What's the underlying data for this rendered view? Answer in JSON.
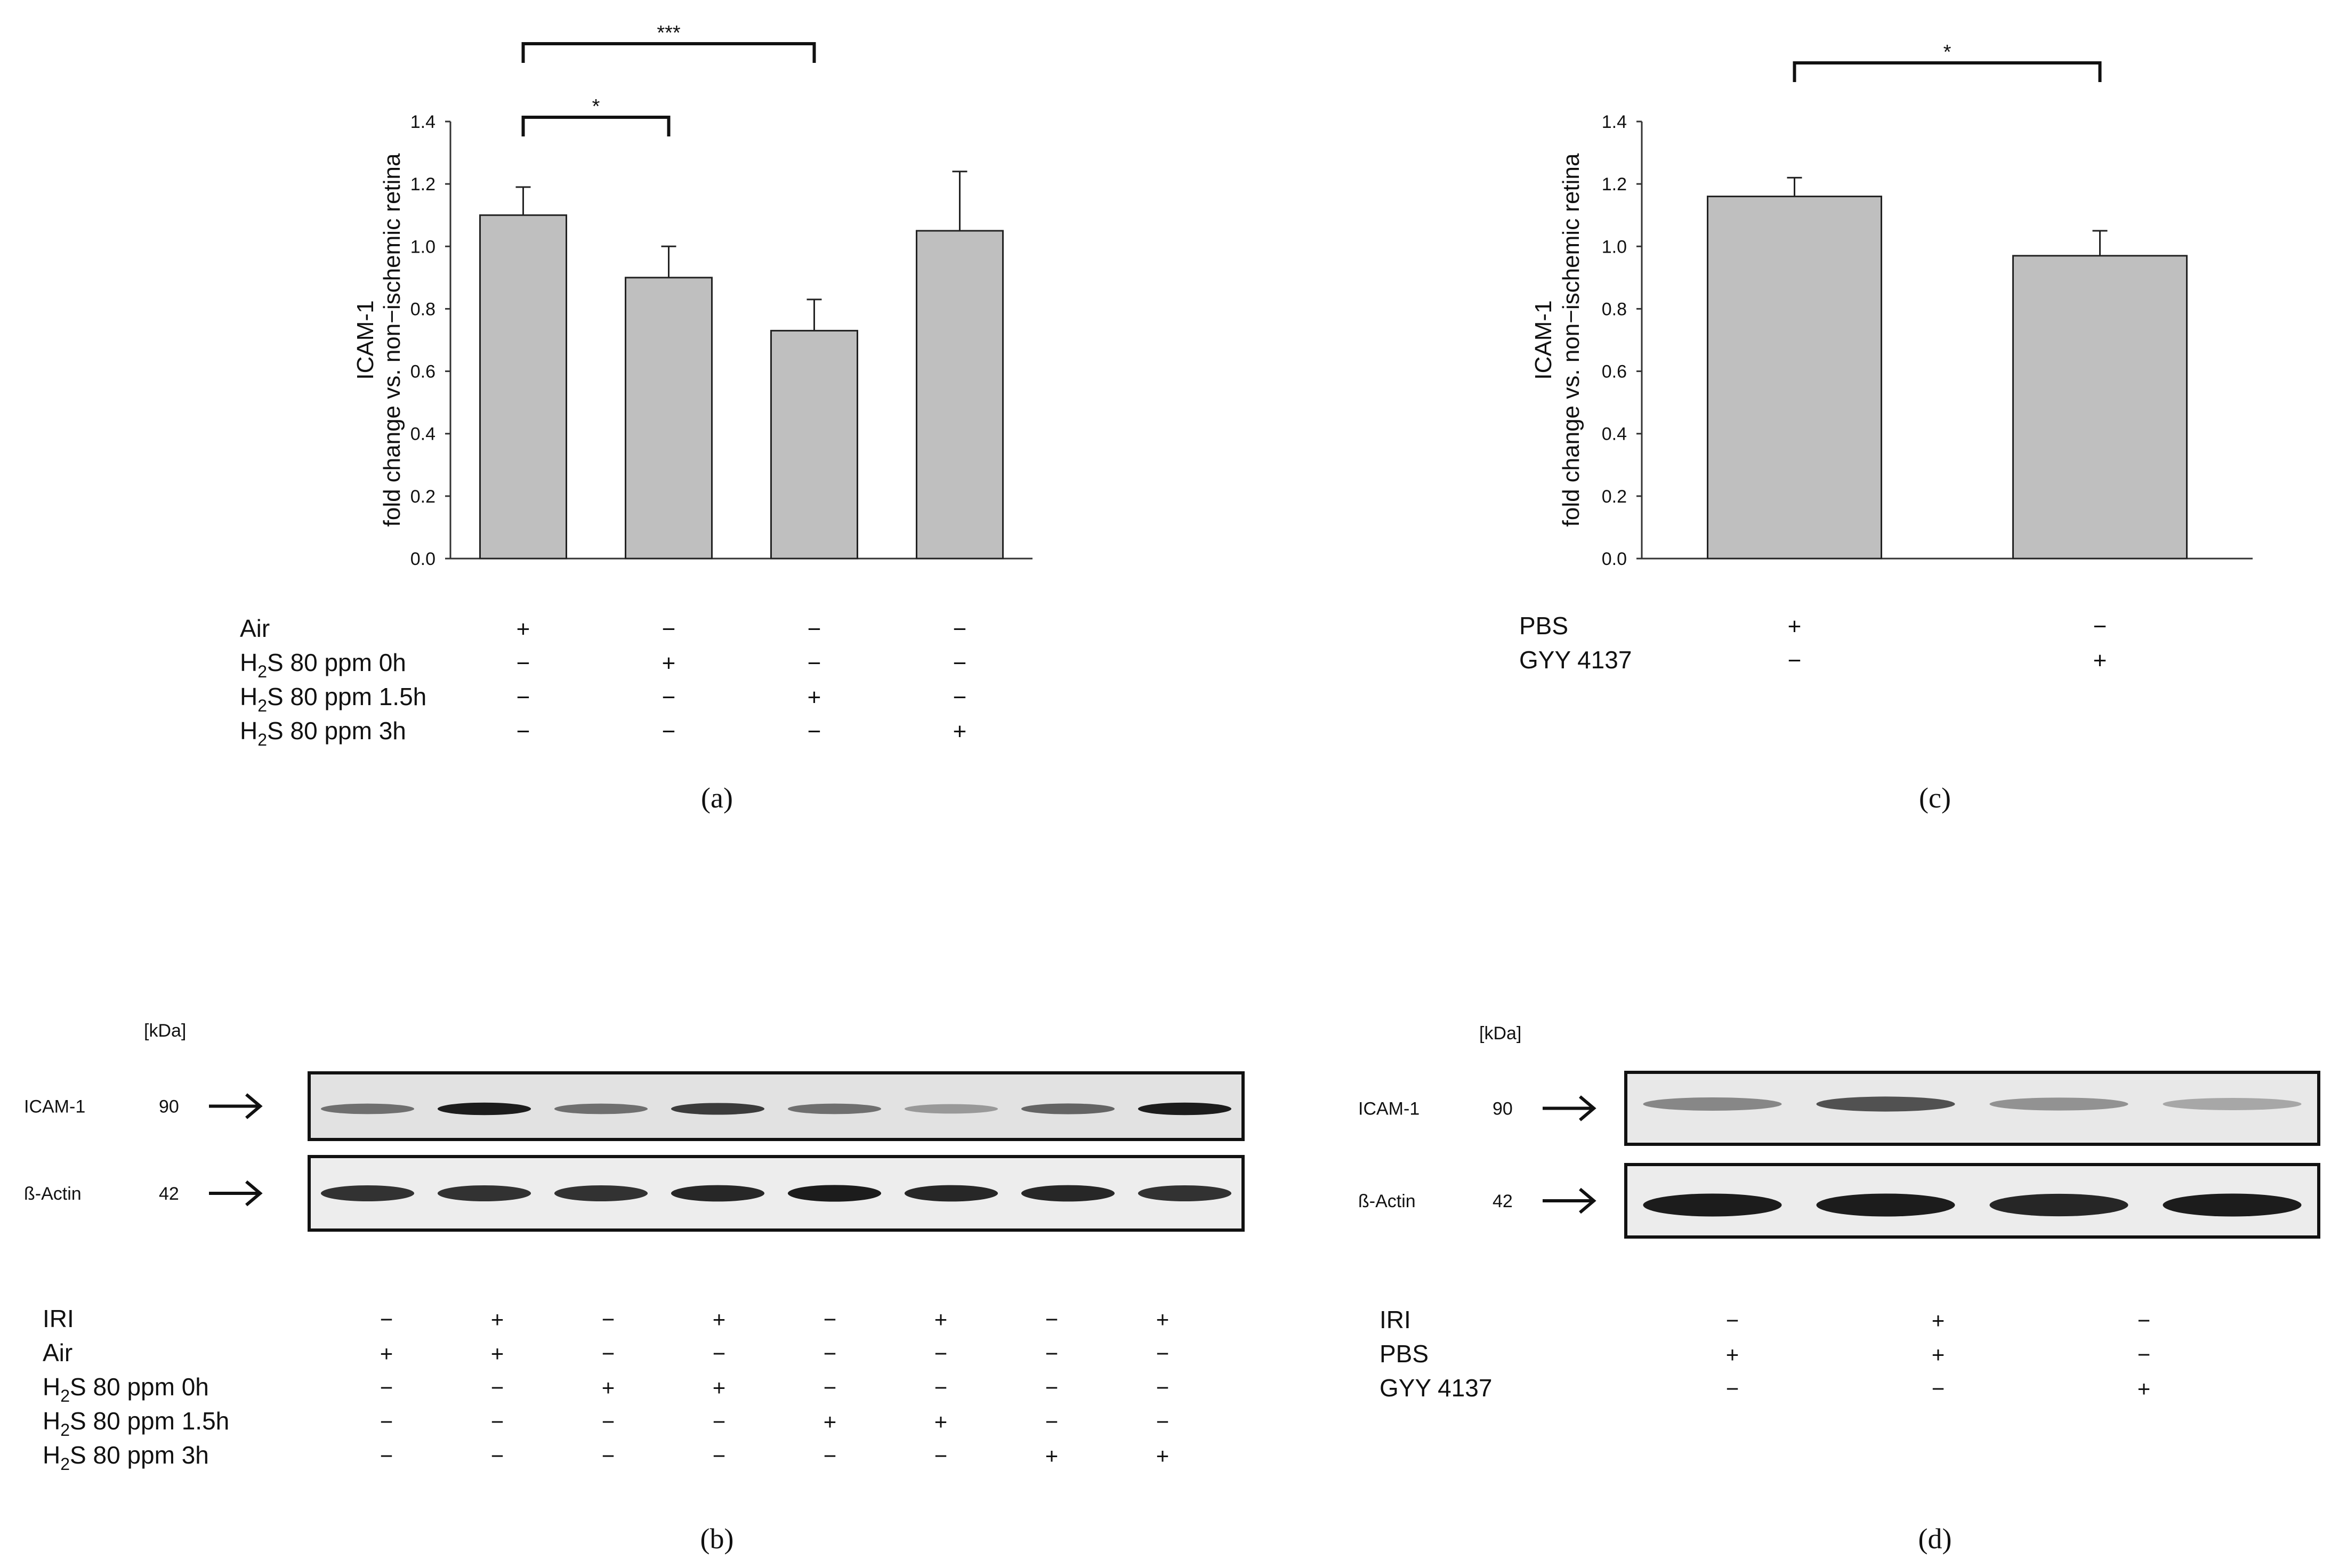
{
  "chart_data": [
    {
      "type": "bar",
      "panel": "(a)",
      "ylabel_line1": "ICAM-1",
      "ylabel_line2": "fold change vs. non−ischemic retina",
      "ylim": [
        0,
        1.4
      ],
      "yticks": [
        "0.0",
        "0.2",
        "0.4",
        "0.6",
        "0.8",
        "1.0",
        "1.2",
        "1.4"
      ],
      "values": [
        1.1,
        0.9,
        0.73,
        1.05
      ],
      "errors": [
        0.09,
        0.1,
        0.1,
        0.19
      ],
      "bar_color": "#bfbfbf",
      "significance": [
        {
          "from": 0,
          "to": 1,
          "label": "*"
        },
        {
          "from": 0,
          "to": 2,
          "label": "***"
        }
      ],
      "conditions": [
        {
          "label": "Air",
          "signs": [
            "+",
            "−",
            "−",
            "−"
          ]
        },
        {
          "label": "H2S 80 ppm 0h",
          "prefix": "H",
          "sub": "2",
          "suffix": "S 80 ppm 0h",
          "signs": [
            "−",
            "+",
            "−",
            "−"
          ]
        },
        {
          "label": "H2S 80 ppm 1.5h",
          "prefix": "H",
          "sub": "2",
          "suffix": "S 80 ppm 1.5h",
          "signs": [
            "−",
            "−",
            "+",
            "−"
          ]
        },
        {
          "label": "H2S 80 ppm 3h",
          "prefix": "H",
          "sub": "2",
          "suffix": "S 80 ppm 3h",
          "signs": [
            "−",
            "−",
            "−",
            "+"
          ]
        }
      ]
    },
    {
      "type": "bar",
      "panel": "(c)",
      "ylabel_line1": "ICAM-1",
      "ylabel_line2": "fold change vs. non−ischemic retina",
      "ylim": [
        0,
        1.4
      ],
      "yticks": [
        "0.0",
        "0.2",
        "0.4",
        "0.6",
        "0.8",
        "1.0",
        "1.2",
        "1.4"
      ],
      "values": [
        1.16,
        0.97
      ],
      "errors": [
        0.06,
        0.08
      ],
      "bar_color": "#bfbfbf",
      "significance": [
        {
          "from": 0,
          "to": 1,
          "label": "*"
        }
      ],
      "conditions": [
        {
          "label": "PBS",
          "signs": [
            "+",
            "−"
          ]
        },
        {
          "label": "GYY 4137",
          "signs": [
            "−",
            "+"
          ]
        }
      ]
    }
  ],
  "blots": {
    "b": {
      "panel": "(b)",
      "unit": "[kDa]",
      "rows": [
        {
          "name": "ICAM-1",
          "kda": "90"
        },
        {
          "name": "ß-Actin",
          "kda": "42"
        }
      ],
      "band_intensity": {
        "icam": [
          0.55,
          0.95,
          0.55,
          0.8,
          0.55,
          0.35,
          0.6,
          0.95
        ],
        "actin": [
          0.85,
          0.85,
          0.85,
          0.9,
          0.95,
          0.9,
          0.9,
          0.85
        ]
      },
      "conditions": [
        {
          "label": "IRI",
          "signs": [
            "−",
            "+",
            "−",
            "+",
            "−",
            "+",
            "−",
            "+"
          ]
        },
        {
          "label": "Air",
          "signs": [
            "+",
            "+",
            "−",
            "−",
            "−",
            "−",
            "−",
            "−"
          ]
        },
        {
          "label": "H2S 80 ppm 0h",
          "prefix": "H",
          "sub": "2",
          "suffix": "S 80 ppm 0h",
          "signs": [
            "−",
            "−",
            "+",
            "+",
            "−",
            "−",
            "−",
            "−"
          ]
        },
        {
          "label": "H2S 80 ppm 1.5h",
          "prefix": "H",
          "sub": "2",
          "suffix": "S 80 ppm 1.5h",
          "signs": [
            "−",
            "−",
            "−",
            "−",
            "+",
            "+",
            "−",
            "−"
          ]
        },
        {
          "label": "H2S 80 ppm 3h",
          "prefix": "H",
          "sub": "2",
          "suffix": "S 80 ppm 3h",
          "signs": [
            "−",
            "−",
            "−",
            "−",
            "−",
            "−",
            "+",
            "+"
          ]
        }
      ]
    },
    "d": {
      "panel": "(d)",
      "unit": "[kDa]",
      "rows": [
        {
          "name": "ICAM-1",
          "kda": "90"
        },
        {
          "name": "ß-Actin",
          "kda": "42"
        }
      ],
      "band_intensity": {
        "icam": [
          0.45,
          0.7,
          0.4,
          0.3
        ],
        "actin": [
          0.95,
          0.95,
          0.9,
          0.95
        ]
      },
      "conditions": [
        {
          "label": "IRI",
          "signs": [
            "−",
            "+",
            "−",
            "+"
          ]
        },
        {
          "label": "PBS",
          "signs": [
            "+",
            "+",
            "−",
            "−"
          ]
        },
        {
          "label": "GYY 4137",
          "signs": [
            "−",
            "−",
            "+",
            "+"
          ]
        }
      ]
    }
  }
}
